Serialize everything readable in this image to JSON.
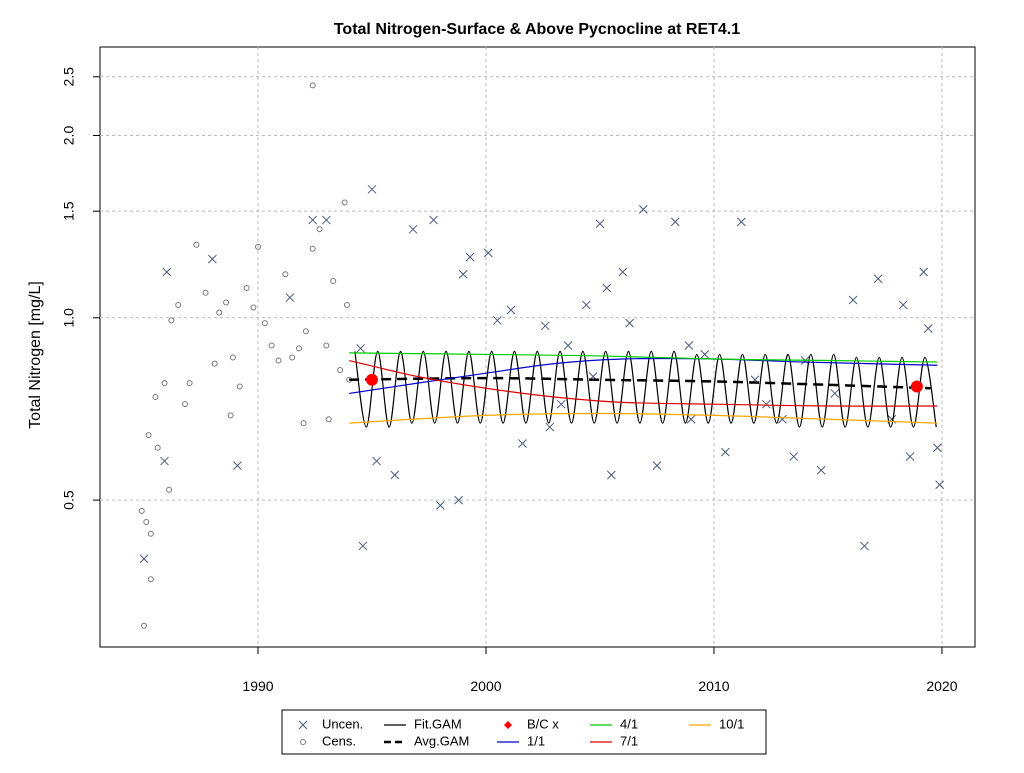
{
  "chart_data": {
    "type": "scatter-line",
    "title": "Total Nitrogen-Surface & Above Pycnocline at RET4.1",
    "y_label": "Total Nitrogen [mg/L]",
    "xlim": [
      1983.07,
      2021.45
    ],
    "xticks": [
      1990,
      2000,
      2010,
      2020
    ],
    "ylim": [
      0.286,
      2.8
    ],
    "yticks": [
      0.5,
      {
        "value": 1,
        "label": "1.0"
      },
      1.5,
      {
        "value": 2,
        "label": "2.0"
      },
      2.5
    ],
    "log_y": true,
    "grid": true,
    "legend": "bottom",
    "series": [
      {
        "name": "Uncen.",
        "color": "#4a5a7a",
        "style": "x",
        "x": [
          1985.0,
          1985.9,
          1986.0,
          1988.0,
          1989.1,
          1991.4,
          1992.4,
          1993.0,
          1994.5,
          1994.6,
          1995.0,
          1995.2,
          1996.0,
          1996.8,
          1997.7,
          1998.0,
          1998.8,
          1999.0,
          1999.3,
          2000.1,
          2000.5,
          2001.1,
          2001.6,
          2002.6,
          2003.6,
          2004.4,
          2005.0,
          2005.3,
          2005.5,
          2006.0,
          2006.3,
          2006.9,
          2007.5,
          2008.3,
          2008.9,
          2009.6,
          2010.5,
          2011.2,
          2011.8,
          2012.3,
          2013.0,
          2013.5,
          2014.0,
          2014.7,
          2015.3,
          2016.1,
          2016.6,
          2017.2,
          2017.8,
          2018.3,
          2018.6,
          2019.2,
          2019.4,
          2019.8,
          2019.9,
          2002.8,
          2004.7,
          2009.0,
          2003.3
        ],
        "values": [
          0.4,
          0.58,
          1.19,
          1.25,
          0.57,
          1.08,
          1.45,
          1.45,
          0.89,
          0.42,
          1.63,
          0.58,
          0.55,
          1.4,
          1.45,
          0.49,
          0.5,
          1.18,
          1.26,
          1.28,
          0.99,
          1.03,
          0.62,
          0.97,
          0.9,
          1.05,
          1.43,
          1.12,
          0.55,
          1.19,
          0.98,
          1.51,
          0.57,
          1.44,
          0.9,
          0.87,
          0.6,
          1.44,
          0.79,
          0.72,
          0.68,
          0.59,
          0.85,
          0.56,
          0.75,
          1.07,
          0.42,
          1.16,
          0.68,
          1.05,
          0.59,
          1.19,
          0.96,
          0.61,
          0.53,
          0.66,
          0.8,
          0.68,
          0.72
        ]
      },
      {
        "name": "Cens.",
        "color": "#777777",
        "style": "o",
        "x": [
          1984.9,
          1985.1,
          1985.3,
          1985.6,
          1985.2,
          1985.5,
          1985.9,
          1986.2,
          1986.5,
          1986.8,
          1987.0,
          1987.3,
          1987.7,
          1988.1,
          1988.3,
          1988.6,
          1988.9,
          1989.2,
          1989.5,
          1989.8,
          1990.0,
          1990.3,
          1990.6,
          1990.9,
          1991.2,
          1991.5,
          1991.8,
          1992.1,
          1992.4,
          1992.7,
          1993.0,
          1993.3,
          1993.6,
          1993.8,
          1993.9,
          1994.0,
          1992.4,
          1985.0,
          1985.3,
          1986.1,
          1988.8,
          1992.0,
          1993.1
        ],
        "values": [
          0.48,
          0.46,
          0.44,
          0.61,
          0.64,
          0.74,
          0.78,
          0.99,
          1.05,
          0.72,
          0.78,
          1.32,
          1.1,
          0.84,
          1.02,
          1.06,
          0.86,
          0.77,
          1.12,
          1.04,
          1.31,
          0.98,
          0.9,
          0.85,
          1.18,
          0.86,
          0.89,
          0.95,
          1.3,
          1.4,
          0.9,
          1.15,
          0.82,
          1.55,
          1.05,
          0.79,
          2.42,
          0.31,
          0.37,
          0.52,
          0.69,
          0.67,
          0.68
        ]
      },
      {
        "name": "Fit.GAM",
        "color": "#000000",
        "style": "line",
        "x": [
          1994.25,
          1994.75,
          1995.25,
          1995.75,
          1996.25,
          1996.75,
          1997.25,
          1997.75,
          1998.25,
          1998.75,
          1999.25,
          1999.75,
          2000.25,
          2000.75,
          2001.25,
          2001.75,
          2002.25,
          2002.75,
          2003.25,
          2003.75,
          2004.25,
          2004.75,
          2005.25,
          2005.75,
          2006.25,
          2006.75,
          2007.25,
          2007.75,
          2008.25,
          2008.75,
          2009.25,
          2009.75,
          2010.25,
          2010.75,
          2011.25,
          2011.75,
          2012.25,
          2012.75,
          2013.25,
          2013.75,
          2014.25,
          2014.75,
          2015.25,
          2015.75,
          2016.25,
          2016.75,
          2017.25,
          2017.75,
          2018.25,
          2018.75,
          2019.25,
          2019.75
        ],
        "values": [
          0.88,
          0.66,
          0.88,
          0.66,
          0.88,
          0.67,
          0.88,
          0.67,
          0.88,
          0.67,
          0.88,
          0.67,
          0.88,
          0.67,
          0.88,
          0.67,
          0.88,
          0.67,
          0.88,
          0.67,
          0.88,
          0.67,
          0.88,
          0.67,
          0.88,
          0.67,
          0.88,
          0.67,
          0.88,
          0.67,
          0.87,
          0.67,
          0.87,
          0.67,
          0.87,
          0.67,
          0.87,
          0.67,
          0.87,
          0.66,
          0.87,
          0.66,
          0.87,
          0.66,
          0.86,
          0.66,
          0.86,
          0.66,
          0.86,
          0.66,
          0.86,
          0.66
        ]
      },
      {
        "name": "Avg.GAM",
        "color": "#000000",
        "style": "dash",
        "x": [
          1994.0,
          2000.0,
          2005.0,
          2010.0,
          2015.0,
          2019.5
        ],
        "values": [
          0.79,
          0.795,
          0.79,
          0.785,
          0.775,
          0.765
        ]
      },
      {
        "name": "B/C x",
        "color": "#ff0000",
        "style": "dot",
        "x": [
          1995.0,
          2018.9
        ],
        "values": [
          0.79,
          0.77
        ]
      },
      {
        "name": "1/1",
        "color": "#0000cc",
        "style": "line",
        "x": [
          1994.0,
          1997.0,
          2000.0,
          2003.0,
          2006.0,
          2010.0,
          2014.0,
          2019.8
        ],
        "values": [
          0.75,
          0.78,
          0.81,
          0.84,
          0.855,
          0.855,
          0.845,
          0.835
        ]
      },
      {
        "name": "4/1",
        "color": "#00cc00",
        "style": "line",
        "x": [
          1994.0,
          2000.0,
          2005.0,
          2010.0,
          2015.0,
          2019.8
        ],
        "values": [
          0.875,
          0.87,
          0.865,
          0.855,
          0.85,
          0.845
        ]
      },
      {
        "name": "7/1",
        "color": "#dd0000",
        "style": "line",
        "x": [
          1994.0,
          1997.0,
          2000.0,
          2003.0,
          2006.0,
          2010.0,
          2015.0,
          2019.8
        ],
        "values": [
          0.85,
          0.8,
          0.765,
          0.74,
          0.725,
          0.72,
          0.715,
          0.715
        ]
      },
      {
        "name": "10/1",
        "color": "#ffa500",
        "style": "line",
        "x": [
          1994.0,
          2000.0,
          2005.0,
          2010.0,
          2015.0,
          2019.8
        ],
        "values": [
          0.67,
          0.69,
          0.695,
          0.69,
          0.68,
          0.67
        ]
      }
    ]
  }
}
